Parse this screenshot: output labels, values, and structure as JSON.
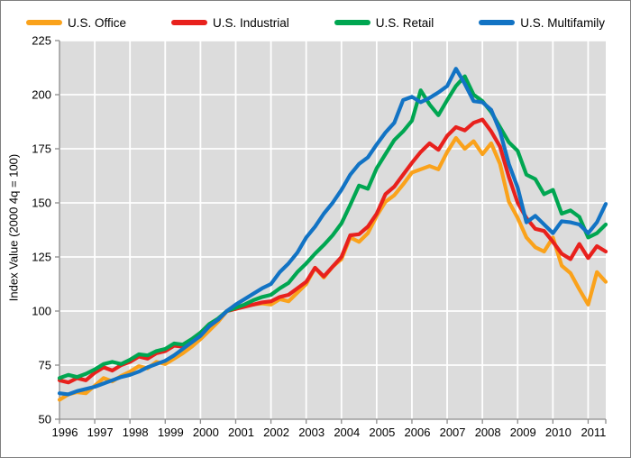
{
  "chart_data": {
    "type": "line",
    "title": "",
    "ylabel": "Index Value (2000 4q = 100)",
    "x_tick_labels": [
      "1996",
      "1997",
      "1998",
      "1999",
      "2000",
      "2001",
      "2002",
      "2003",
      "2004",
      "2005",
      "2006",
      "2007",
      "2008",
      "2009",
      "2010",
      "2011"
    ],
    "y_ticks": [
      50,
      75,
      100,
      125,
      150,
      175,
      200,
      225
    ],
    "ylim": [
      50,
      225
    ],
    "x_range": "1996 Q1 to 2011 Q3, quarterly",
    "points_per_year": 4,
    "grid": true,
    "legend_position": "top",
    "plot_bg": "#dcdcdc",
    "grid_color": "#ffffff",
    "axis_color": "#8c8c8c",
    "tick_label_color": "#000000",
    "series": [
      {
        "name": "U.S. Office",
        "color": "#faa21b",
        "values": [
          59,
          61.5,
          62.5,
          62,
          65.5,
          69,
          67.5,
          70,
          72,
          74.5,
          73.5,
          76.5,
          75.5,
          78,
          80.5,
          83.5,
          87,
          91,
          95,
          100,
          101,
          102.5,
          103,
          103.5,
          103,
          105.5,
          104.5,
          108.5,
          112.5,
          120,
          115.5,
          120.5,
          124,
          134,
          132,
          136,
          144,
          150.5,
          153.5,
          158.5,
          164,
          165.5,
          167,
          165.5,
          173.5,
          180,
          175,
          178.5,
          172.5,
          177.5,
          168,
          150.5,
          143,
          134,
          129.5,
          127.5,
          134,
          121,
          117.5,
          110,
          103,
          118,
          113.5
        ]
      },
      {
        "name": "U.S. Industrial",
        "color": "#e8211d",
        "values": [
          68,
          67,
          69,
          68,
          71.5,
          74,
          72.5,
          75,
          76.5,
          79,
          78,
          80.5,
          81.5,
          84,
          83.5,
          86,
          89,
          93,
          96,
          100,
          101,
          102,
          103,
          104,
          104.5,
          106.5,
          107.5,
          110.5,
          113.5,
          120,
          116,
          120.5,
          125,
          135,
          135.5,
          139,
          145,
          154,
          157.5,
          163,
          168.5,
          173.5,
          177.5,
          174.5,
          181,
          185,
          183.5,
          187,
          188.5,
          183,
          176,
          162,
          150,
          143,
          138,
          137,
          132,
          126.5,
          124,
          131,
          124.5,
          130,
          127.5
        ]
      },
      {
        "name": "U.S. Retail",
        "color": "#00a651",
        "values": [
          69,
          70.5,
          69.5,
          71,
          73,
          75.5,
          76.5,
          75.5,
          77.5,
          80,
          79.5,
          81.5,
          82.5,
          85,
          84.5,
          87,
          90,
          94,
          96.5,
          100,
          101.5,
          103,
          105,
          106.5,
          107.5,
          110.5,
          113,
          118,
          122,
          126.5,
          130.5,
          135,
          140.5,
          149,
          158,
          156.5,
          166,
          172.5,
          179,
          183,
          188,
          202,
          195.5,
          190.5,
          197.5,
          204,
          208.5,
          200,
          197,
          192,
          185,
          178,
          174,
          163,
          161,
          154,
          156,
          145,
          146.5,
          143.5,
          134,
          136,
          140
        ]
      },
      {
        "name": "U.S. Multifamily",
        "color": "#1273c4",
        "values": [
          62,
          61.5,
          63,
          64,
          65,
          66.5,
          68,
          69.5,
          70.5,
          72,
          74,
          75.5,
          77,
          79.5,
          82.5,
          85.5,
          88.5,
          93,
          96,
          100,
          103,
          105.5,
          108,
          110.5,
          112.5,
          118,
          122,
          127,
          134,
          139,
          145,
          150,
          156,
          163,
          168,
          171,
          177,
          182.5,
          187,
          197.5,
          199,
          196.5,
          198.5,
          201,
          204,
          212,
          205,
          197,
          196.5,
          193,
          183,
          168,
          157,
          141,
          144,
          140,
          136,
          141.5,
          141,
          140,
          136,
          141,
          149.5
        ]
      }
    ]
  }
}
